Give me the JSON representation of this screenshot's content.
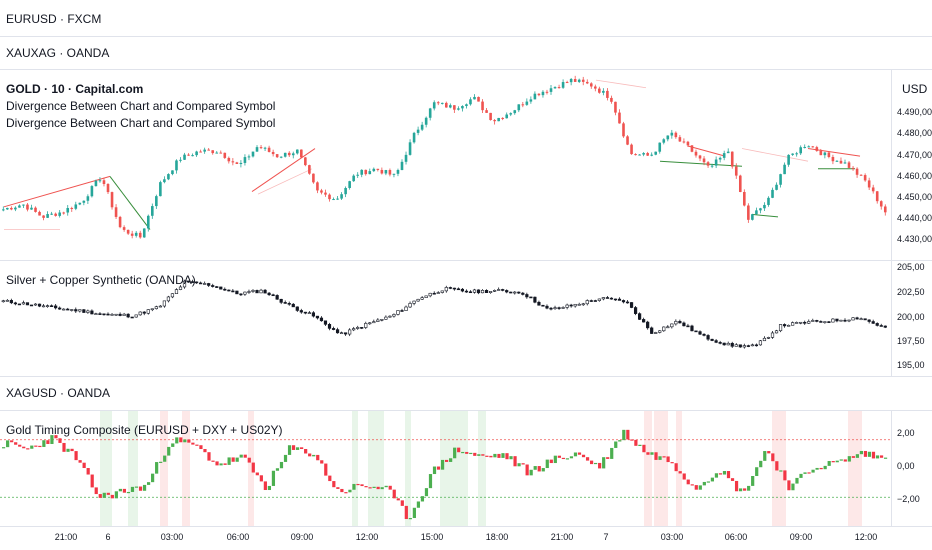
{
  "panes": {
    "eurusd": {
      "title": "EURUSD · FXCM"
    },
    "xauxag": {
      "title": "XAUXAG · OANDA"
    },
    "gold": {
      "title": "GOLD · 10 · Capital.com",
      "indicator_1": "Divergence Between Chart and Compared Symbol",
      "indicator_2": "Divergence Between Chart and Compared Symbol",
      "currency": "USD",
      "yticks": [
        "4.490,00",
        "4.480,00",
        "4.470,00",
        "4.460,00",
        "4.450,00",
        "4.440,00",
        "4.430,00"
      ]
    },
    "synthetic": {
      "title": "Silver + Copper Synthetic (OANDA)",
      "yticks": [
        "205,00",
        "202,50",
        "200,00",
        "197,50",
        "195,00"
      ]
    },
    "xagusd": {
      "title": "XAGUSD · OANDA"
    },
    "composite": {
      "title": "Gold Timing Composite (EURUSD + DXY + US02Y)",
      "yticks": [
        "2,00",
        "0,00",
        "−2,00"
      ]
    }
  },
  "time_axis": [
    "21:00",
    "6",
    "03:00",
    "06:00",
    "09:00",
    "12:00",
    "15:00",
    "18:00",
    "21:00",
    "7",
    "03:00",
    "06:00",
    "09:00",
    "12:00"
  ],
  "colors": {
    "up": "#26a69a",
    "down": "#ef5350",
    "line_up": "#4caf50",
    "line_down": "#f23645",
    "grid": "#e0e3eb",
    "text": "#131722"
  },
  "chart_data": [
    {
      "type": "candlestick",
      "title": "GOLD · 10 · Capital.com",
      "ylim": [
        4425,
        4500
      ],
      "anchors": [
        4445,
        4447,
        4442,
        4444,
        4448,
        4458,
        4437,
        4434,
        4455,
        4465,
        4468,
        4468,
        4462,
        4470,
        4466,
        4468,
        4452,
        4449,
        4459,
        4461,
        4458,
        4475,
        4487,
        4485,
        4489,
        4480,
        4484,
        4490,
        4493,
        4496,
        4494,
        4489,
        4467,
        4466,
        4475,
        4469,
        4461,
        4468,
        4441,
        4448,
        4465,
        4471,
        4466,
        4463,
        4456,
        4444
      ]
    },
    {
      "type": "candlestick",
      "title": "Silver + Copper Synthetic (OANDA)",
      "ylim": [
        194,
        206
      ],
      "anchors": [
        201.8,
        201.5,
        201.1,
        200.8,
        200.4,
        200.3,
        201.2,
        203.8,
        203.5,
        202.6,
        202.9,
        201.4,
        200.2,
        198.3,
        199.4,
        200.3,
        202.1,
        203.1,
        202.8,
        202.9,
        202.7,
        200.9,
        201.4,
        202.1,
        201.8,
        198.5,
        199.7,
        198.1,
        197.2,
        197.1,
        199.3,
        199.6,
        199.8,
        200.1,
        199.0
      ]
    },
    {
      "type": "histogram-line",
      "title": "Gold Timing Composite (EURUSD + DXY + US02Y)",
      "ylim": [
        -3,
        3
      ],
      "anchors": [
        1.3,
        1.0,
        1.6,
        0.6,
        -1.5,
        -1.2,
        -0.9,
        1.5,
        1.2,
        0.2,
        0.6,
        -1.0,
        1.0,
        0.8,
        -1.2,
        -0.9,
        -1.0,
        -2.6,
        -0.2,
        1.0,
        0.6,
        0.7,
        -0.2,
        0.4,
        0.8,
        0.1,
        1.9,
        0.8,
        0.4,
        -1.0,
        0.0,
        -1.3,
        1.0,
        -1.0,
        0.1,
        0.3,
        0.8,
        0.5
      ]
    }
  ]
}
